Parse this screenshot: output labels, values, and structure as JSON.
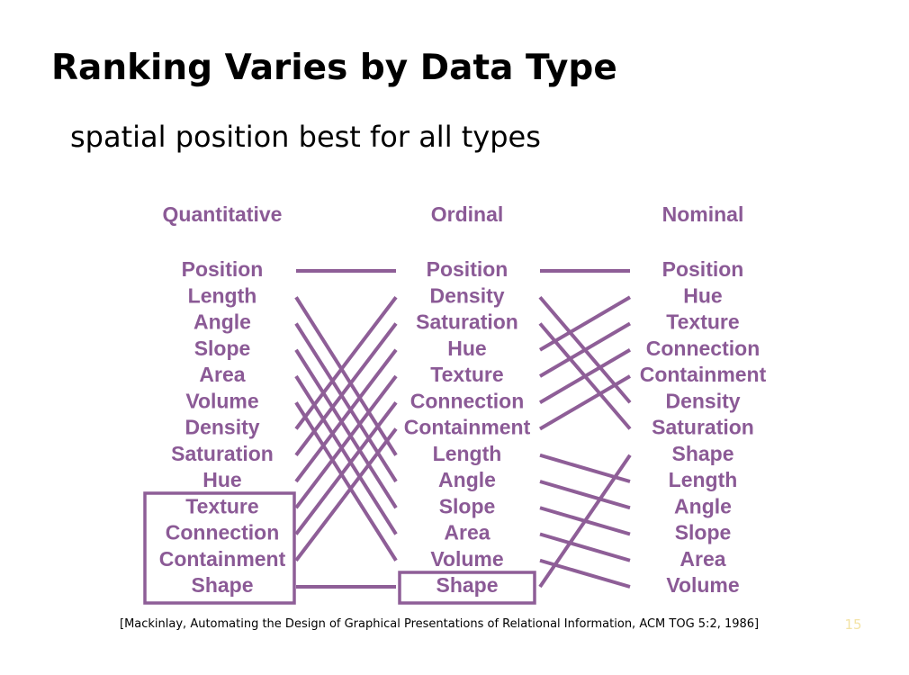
{
  "title": "Ranking Varies by Data Type",
  "subtitle": "spatial position best for all types",
  "columns": [
    {
      "header": "Quantitative",
      "items": [
        "Position",
        "Length",
        "Angle",
        "Slope",
        "Area",
        "Volume",
        "Density",
        "Saturation",
        "Hue",
        "Texture",
        "Connection",
        "Containment",
        "Shape"
      ]
    },
    {
      "header": "Ordinal",
      "items": [
        "Position",
        "Density",
        "Saturation",
        "Hue",
        "Texture",
        "Connection",
        "Containment",
        "Length",
        "Angle",
        "Slope",
        "Area",
        "Volume",
        "Shape"
      ]
    },
    {
      "header": "Nominal",
      "items": [
        "Position",
        "Hue",
        "Texture",
        "Connection",
        "Containment",
        "Density",
        "Saturation",
        "Shape",
        "Length",
        "Angle",
        "Slope",
        "Area",
        "Volume"
      ]
    }
  ],
  "citation": "[Mackinlay, Automating the Design of Graphical Presentations of Relational Information, ACM TOG 5:2, 1986]",
  "page_number": "15"
}
